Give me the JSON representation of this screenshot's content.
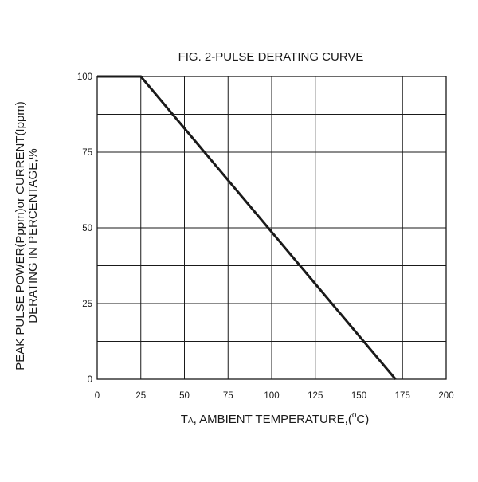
{
  "chart_data": {
    "type": "line",
    "title": "FIG. 2-PULSE DERATING CURVE",
    "xlabel": {
      "main": "T",
      "subscript": "A",
      "rest_before_degree": ", AMBIENT TEMPERATURE,(",
      "degree": "o",
      "rest_after_degree": "C)"
    },
    "ylabel_lines": [
      "PEAK PULSE POWER(Pppm)or CURRENT(Ippm)",
      "DERATING IN PERCENTAGE,%"
    ],
    "xlim": [
      0,
      200
    ],
    "ylim": [
      0,
      100
    ],
    "x_ticks": [
      0,
      25,
      50,
      75,
      100,
      125,
      150,
      175,
      200
    ],
    "x_tick_labels": [
      "0",
      "25",
      "50",
      "75",
      "100",
      "125",
      "150",
      "175",
      "200"
    ],
    "y_ticks": [
      0,
      25,
      50,
      75,
      100
    ],
    "y_tick_labels": [
      "0",
      "25",
      "50",
      "75",
      "100"
    ],
    "x_grid_step": 25,
    "y_grid_step": 12.5,
    "grid": true,
    "legend": "none",
    "series": [
      {
        "x": [
          0,
          25,
          171
        ],
        "y": [
          100,
          100,
          0
        ]
      }
    ]
  }
}
